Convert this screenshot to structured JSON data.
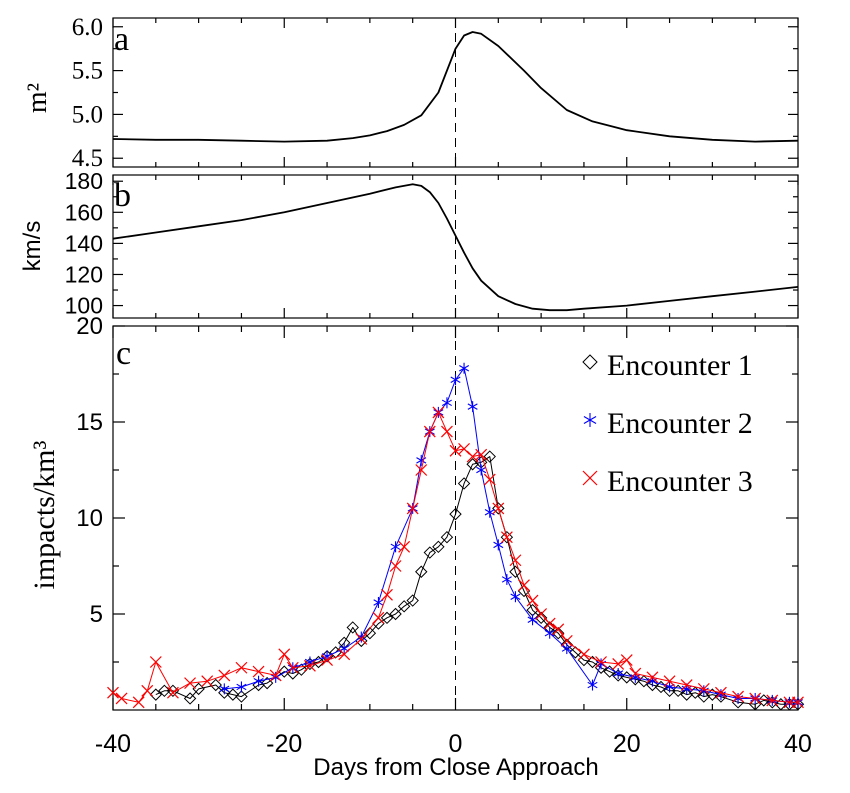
{
  "chart_data": [
    {
      "type": "line",
      "panel_label": "a",
      "ylabel": "m²",
      "ylim": [
        4.4,
        6.1
      ],
      "yticks": [
        "4.5",
        "5.0",
        "5.5",
        "6.0"
      ],
      "xlim": [
        -40,
        40
      ],
      "series": [
        {
          "color": "#000000",
          "x": [
            -40,
            -35,
            -30,
            -25,
            -20,
            -15,
            -12,
            -10,
            -8,
            -6,
            -4,
            -2,
            0,
            1,
            2,
            3,
            5,
            8,
            10,
            13,
            16,
            20,
            25,
            30,
            35,
            40
          ],
          "y": [
            4.72,
            4.71,
            4.71,
            4.7,
            4.69,
            4.7,
            4.73,
            4.76,
            4.81,
            4.88,
            4.99,
            5.25,
            5.75,
            5.9,
            5.94,
            5.92,
            5.78,
            5.5,
            5.3,
            5.05,
            4.92,
            4.82,
            4.75,
            4.71,
            4.69,
            4.7
          ]
        }
      ]
    },
    {
      "type": "line",
      "panel_label": "b",
      "ylabel": "km/s",
      "ylim": [
        92,
        184
      ],
      "yticks": [
        "100",
        "120",
        "140",
        "160",
        "180"
      ],
      "xlim": [
        -40,
        40
      ],
      "series": [
        {
          "color": "#000000",
          "x": [
            -40,
            -35,
            -30,
            -25,
            -20,
            -15,
            -10,
            -7,
            -5,
            -4,
            -3,
            -2,
            -1,
            0,
            1,
            2,
            3,
            5,
            7,
            9,
            11,
            13,
            15,
            20,
            25,
            30,
            35,
            40
          ],
          "y": [
            143,
            147,
            151,
            155,
            160,
            166,
            172,
            176,
            178,
            177,
            173,
            166,
            156,
            145,
            134,
            124,
            116,
            106,
            101,
            98,
            97,
            97,
            98,
            100,
            103,
            106,
            109,
            112
          ]
        }
      ]
    },
    {
      "type": "line",
      "panel_label": "c",
      "ylabel": "impacts/km³",
      "xlabel": "Days from Close Approach",
      "ylim": [
        0,
        20
      ],
      "yticks": [
        "5",
        "10",
        "15",
        "20"
      ],
      "xlim": [
        -40,
        40
      ],
      "xticks": [
        "-40",
        "-20",
        "0",
        "20",
        "40"
      ],
      "legend_position": "top-right",
      "series": [
        {
          "name": "Encounter 1",
          "color": "#000000",
          "marker": "diamond",
          "x": [
            -35,
            -34,
            -33,
            -31,
            -30,
            -28,
            -27,
            -26,
            -25,
            -23,
            -22,
            -20,
            -19,
            -18,
            -17,
            -16,
            -15,
            -14,
            -13,
            -12,
            -11,
            -10,
            -9,
            -8,
            -7,
            -6,
            -5,
            -4,
            -3,
            -2,
            -1,
            0,
            1,
            2,
            3,
            4,
            5,
            6,
            7,
            8,
            9,
            10,
            11,
            12,
            13,
            14,
            15,
            16,
            17,
            18,
            19,
            20,
            21,
            22,
            23,
            24,
            25,
            26,
            27,
            28,
            29,
            30,
            31,
            33,
            35,
            36,
            37,
            38,
            39,
            40
          ],
          "y": [
            0.8,
            1.0,
            1.0,
            0.6,
            1.1,
            1.3,
            0.9,
            0.8,
            0.7,
            1.3,
            1.4,
            2.0,
            1.9,
            2.1,
            2.4,
            2.5,
            2.8,
            3.0,
            3.5,
            4.3,
            3.6,
            4.0,
            4.5,
            4.8,
            5.0,
            5.4,
            5.7,
            7.2,
            8.2,
            8.5,
            9.0,
            10.2,
            11.8,
            12.8,
            12.9,
            13.2,
            10.5,
            9.0,
            7.2,
            6.2,
            5.2,
            4.8,
            4.3,
            4.0,
            3.4,
            3.0,
            2.6,
            2.5,
            2.2,
            2.0,
            1.8,
            1.7,
            1.6,
            1.5,
            1.3,
            1.2,
            1.0,
            1.0,
            0.8,
            0.9,
            0.7,
            0.8,
            0.7,
            0.4,
            0.3,
            0.5,
            0.4,
            0.3,
            0.3,
            0.3
          ]
        },
        {
          "name": "Encounter 2",
          "color": "#0000ff",
          "marker": "asterisk",
          "x": [
            -27,
            -25,
            -23,
            -21,
            -19,
            -17,
            -15,
            -13,
            -11,
            -9,
            -7,
            -5,
            -4,
            -3,
            -2,
            -1,
            0,
            1,
            2,
            3,
            4,
            5,
            6,
            7,
            9,
            11,
            13,
            16,
            17,
            19,
            21,
            23,
            25,
            27,
            29,
            31,
            33,
            35,
            37,
            39,
            40
          ],
          "y": [
            1.1,
            1.2,
            1.5,
            1.7,
            2.2,
            2.5,
            2.8,
            3.2,
            3.8,
            5.6,
            8.5,
            10.5,
            13.0,
            14.5,
            15.5,
            16.0,
            17.2,
            17.8,
            15.8,
            12.5,
            10.3,
            8.6,
            6.8,
            5.9,
            4.7,
            4.0,
            3.2,
            1.3,
            2.4,
            1.9,
            1.7,
            1.5,
            1.2,
            1.1,
            1.0,
            0.8,
            0.6,
            0.6,
            0.5,
            0.4,
            0.4
          ]
        },
        {
          "name": "Encounter 3",
          "color": "#ff0000",
          "marker": "x",
          "x": [
            -40,
            -39,
            -37,
            -36,
            -35,
            -33,
            -31,
            -29,
            -27,
            -25,
            -23,
            -21,
            -20,
            -19,
            -17,
            -15,
            -13,
            -11,
            -9,
            -8,
            -7,
            -6,
            -5,
            -4,
            -3,
            -2,
            -1,
            0,
            1,
            2,
            3,
            4,
            5,
            6,
            7,
            8,
            9,
            10,
            11,
            12,
            13,
            15,
            17,
            19,
            20,
            21,
            23,
            25,
            27,
            29,
            31,
            33,
            35,
            37,
            39,
            40
          ],
          "y": [
            0.9,
            0.6,
            0.4,
            1.0,
            2.5,
            0.9,
            1.4,
            1.5,
            1.8,
            2.2,
            2.0,
            1.8,
            2.9,
            2.2,
            2.3,
            2.6,
            2.9,
            3.7,
            4.8,
            6.0,
            7.5,
            8.5,
            10.5,
            12.5,
            14.5,
            15.5,
            14.5,
            13.5,
            13.6,
            13.2,
            13.3,
            12.0,
            10.5,
            9.0,
            7.8,
            6.5,
            5.7,
            5.0,
            4.5,
            4.2,
            3.6,
            2.9,
            2.5,
            2.4,
            2.6,
            1.9,
            1.7,
            1.5,
            1.3,
            1.1,
            0.9,
            0.7,
            0.6,
            0.5,
            0.4,
            0.4
          ]
        }
      ]
    }
  ]
}
